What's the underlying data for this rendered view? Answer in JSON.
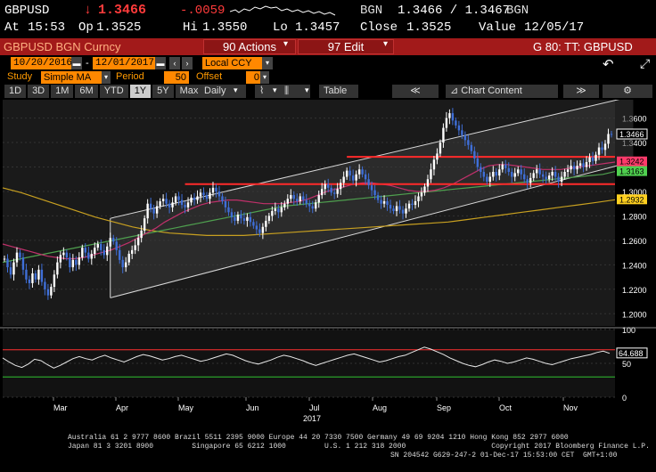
{
  "quote": {
    "ticker": "GBPUSD",
    "arrow": "↓",
    "last": "1.3466",
    "change": "-.0059",
    "source": "BGN",
    "bid_ask": "1.3466 / 1.3467",
    "source2": "BGN",
    "at_label": "At",
    "time": "15:53",
    "op_label": "Op",
    "open": "1.3525",
    "hi_label": "Hi",
    "high": "1.3550",
    "lo_label": "Lo",
    "low": "1.3457",
    "close_label": "Close",
    "close": "1.3525",
    "value_label": "Value",
    "value_date": "12/05/17"
  },
  "title_bar": {
    "name": "GBPUSD BGN Curncy",
    "actions": "90 Actions",
    "edit": "97 Edit",
    "function": "G 80: TT: GBPUSD"
  },
  "date_row": {
    "start": "10/20/2016",
    "end": "12/01/2017",
    "ccy": "Local CCY"
  },
  "study_row": {
    "study_label": "Study",
    "study_value": "Simple MA",
    "period_label": "Period",
    "period_value": "50",
    "offset_label": "Offset",
    "offset_value": "0"
  },
  "toolbar": {
    "ranges": [
      "1D",
      "3D",
      "1M",
      "6M",
      "YTD",
      "1Y",
      "5Y",
      "Max"
    ],
    "selected_range": "1Y",
    "frequency": "Daily",
    "table": "Table",
    "chart_content": "Chart Content"
  },
  "colors": {
    "bg": "#000000",
    "orange": "#ff8800",
    "red_bar": "#a21a1a",
    "ma_fast": "#c0306a",
    "ma_mid": "#4fa04f",
    "ma_slow": "#c8a020",
    "hline": "#ff2a2a",
    "channel": "#d8d8d8"
  },
  "chart_data": [
    {
      "type": "line",
      "ylim": [
        1.19,
        1.375
      ],
      "yticks": [
        "1.3600",
        "1.3400",
        "1.3200",
        "1.3000",
        "1.2800",
        "1.2600",
        "1.2400",
        "1.2200",
        "1.2000"
      ],
      "ytick_values": [
        1.36,
        1.34,
        1.32,
        1.3,
        1.28,
        1.26,
        1.24,
        1.22,
        1.2
      ],
      "months": [
        "Mar",
        "Apr",
        "May",
        "Jun",
        "Jul",
        "Aug",
        "Sep",
        "Oct",
        "Nov"
      ],
      "year_label": "2017",
      "price_labels": [
        {
          "text": "1.3466",
          "value": 1.3466,
          "color": "#ffffff",
          "bg": "#000000",
          "border": "#ffffff"
        },
        {
          "text": "1.3242",
          "value": 1.3242,
          "color": "#000000",
          "bg": "#ff3a6a"
        },
        {
          "text": "1.3163",
          "value": 1.3163,
          "color": "#000000",
          "bg": "#4fd04f"
        },
        {
          "text": "1.2932",
          "value": 1.2932,
          "color": "#000000",
          "bg": "#ffd020"
        }
      ],
      "horizontal_levels": [
        1.3283,
        1.306
      ],
      "price_series": [
        1.245,
        1.238,
        1.232,
        1.242,
        1.25,
        1.246,
        1.236,
        1.228,
        1.225,
        1.233,
        1.228,
        1.236,
        1.226,
        1.22,
        1.215,
        1.222,
        1.232,
        1.242,
        1.248,
        1.25,
        1.246,
        1.238,
        1.244,
        1.24,
        1.246,
        1.254,
        1.25,
        1.245,
        1.249,
        1.254,
        1.257,
        1.252,
        1.248,
        1.255,
        1.262,
        1.259,
        1.252,
        1.244,
        1.238,
        1.242,
        1.249,
        1.252,
        1.256,
        1.262,
        1.268,
        1.278,
        1.29,
        1.286,
        1.282,
        1.288,
        1.292,
        1.294,
        1.29,
        1.287,
        1.291,
        1.296,
        1.293,
        1.289,
        1.287,
        1.291,
        1.295,
        1.293,
        1.296,
        1.299,
        1.297,
        1.294,
        1.299,
        1.303,
        1.3,
        1.296,
        1.292,
        1.287,
        1.283,
        1.279,
        1.276,
        1.281,
        1.278,
        1.276,
        1.279,
        1.275,
        1.272,
        1.269,
        1.266,
        1.271,
        1.276,
        1.28,
        1.284,
        1.286,
        1.283,
        1.287,
        1.29,
        1.294,
        1.297,
        1.294,
        1.292,
        1.296,
        1.293,
        1.29,
        1.288,
        1.286,
        1.291,
        1.297,
        1.302,
        1.306,
        1.303,
        1.299,
        1.298,
        1.302,
        1.307,
        1.312,
        1.317,
        1.313,
        1.309,
        1.314,
        1.318,
        1.314,
        1.31,
        1.305,
        1.301,
        1.297,
        1.293,
        1.29,
        1.292,
        1.289,
        1.286,
        1.284,
        1.288,
        1.285,
        1.282,
        1.286,
        1.29,
        1.289,
        1.292,
        1.296,
        1.299,
        1.304,
        1.31,
        1.318,
        1.326,
        1.331,
        1.34,
        1.352,
        1.36,
        1.364,
        1.358,
        1.354,
        1.35,
        1.346,
        1.342,
        1.338,
        1.333,
        1.327,
        1.32,
        1.316,
        1.312,
        1.308,
        1.312,
        1.316,
        1.313,
        1.318,
        1.322,
        1.319,
        1.316,
        1.312,
        1.315,
        1.318,
        1.314,
        1.31,
        1.307,
        1.311,
        1.315,
        1.318,
        1.314,
        1.312,
        1.31,
        1.313,
        1.316,
        1.312,
        1.308,
        1.312,
        1.316,
        1.318,
        1.321,
        1.318,
        1.321,
        1.323,
        1.32,
        1.324,
        1.328,
        1.325,
        1.33,
        1.336,
        1.334,
        1.339,
        1.347,
        1.3466
      ],
      "ma_fast": [
        1.257,
        1.255,
        1.253,
        1.251,
        1.249,
        1.247,
        1.246,
        1.245,
        1.245,
        1.246,
        1.248,
        1.25,
        1.252,
        1.255,
        1.258,
        1.262,
        1.266,
        1.27,
        1.275,
        1.279,
        1.283,
        1.286,
        1.289,
        1.291,
        1.292,
        1.293,
        1.293,
        1.292,
        1.291,
        1.29,
        1.29,
        1.29,
        1.291,
        1.292,
        1.294,
        1.297,
        1.3,
        1.302,
        1.304,
        1.306,
        1.307,
        1.307,
        1.306,
        1.305,
        1.303,
        1.301,
        1.3,
        1.3,
        1.301,
        1.303,
        1.306,
        1.31,
        1.314,
        1.318,
        1.321,
        1.322,
        1.322,
        1.321,
        1.32,
        1.319,
        1.318,
        1.318,
        1.318,
        1.319,
        1.32,
        1.321,
        1.322,
        1.323,
        1.324
      ],
      "ma_mid": [
        1.242,
        1.244,
        1.246,
        1.248,
        1.25,
        1.252,
        1.254,
        1.256,
        1.258,
        1.26,
        1.262,
        1.264,
        1.266,
        1.268,
        1.27,
        1.272,
        1.274,
        1.276,
        1.278,
        1.28,
        1.282,
        1.284,
        1.286,
        1.288,
        1.289,
        1.29,
        1.291,
        1.292,
        1.293,
        1.294,
        1.295,
        1.296,
        1.297,
        1.298,
        1.299,
        1.3,
        1.301,
        1.302,
        1.303,
        1.304,
        1.305,
        1.306,
        1.307,
        1.308,
        1.309,
        1.31,
        1.311,
        1.312,
        1.313,
        1.314,
        1.3163
      ],
      "ma_slow": [
        1.303,
        1.299,
        1.294,
        1.289,
        1.284,
        1.279,
        1.275,
        1.271,
        1.268,
        1.266,
        1.265,
        1.264,
        1.264,
        1.264,
        1.265,
        1.266,
        1.267,
        1.268,
        1.269,
        1.27,
        1.271,
        1.272,
        1.273,
        1.274,
        1.275,
        1.277,
        1.279,
        1.281,
        1.283,
        1.285,
        1.287,
        1.289,
        1.291,
        1.2932
      ],
      "channel": {
        "lower": [
          1.213,
          1.3245
        ],
        "upper": [
          1.278,
          1.378
        ]
      }
    },
    {
      "type": "line",
      "ylim": [
        0,
        100
      ],
      "yticks": [
        "100",
        "50",
        "0"
      ],
      "ytick_values": [
        100,
        50,
        0
      ],
      "levels": [
        70,
        30
      ],
      "label": "64.688",
      "last_value": 64.688,
      "rsi_series": [
        58,
        52,
        47,
        44,
        49,
        56,
        54,
        48,
        43,
        47,
        52,
        57,
        60,
        57,
        55,
        59,
        62,
        58,
        55,
        52,
        56,
        60,
        63,
        61,
        58,
        55,
        57,
        60,
        62,
        59,
        56,
        53,
        55,
        58,
        61,
        64,
        62,
        58,
        54,
        51,
        49,
        52,
        55,
        59,
        62,
        60,
        57,
        54,
        50,
        47,
        50,
        53,
        56,
        59,
        62,
        64,
        61,
        58,
        55,
        52,
        54,
        57,
        60,
        62,
        66,
        70,
        74,
        71,
        67,
        63,
        58,
        54,
        50,
        47,
        45,
        48,
        52,
        55,
        53,
        50,
        52,
        55,
        58,
        56,
        53,
        50,
        48,
        51,
        54,
        57,
        59,
        61,
        63,
        66,
        68,
        64.688
      ]
    }
  ],
  "footer": {
    "line1": "Australia 61 2 9777 8600 Brazil 5511 2395 9000 Europe 44 20 7330 7500 Germany 49 69 9204 1210 Hong Kong 852 2977 6000",
    "line2": "Japan 81 3 3201 8900         Singapore 65 6212 1000         U.S. 1 212 318 2000                    Copyright 2017 Bloomberg Finance L.P.",
    "line3": "SN 204542 G629-247-2 01-Dec-17 15:53:00 CET  GMT+1:00"
  }
}
